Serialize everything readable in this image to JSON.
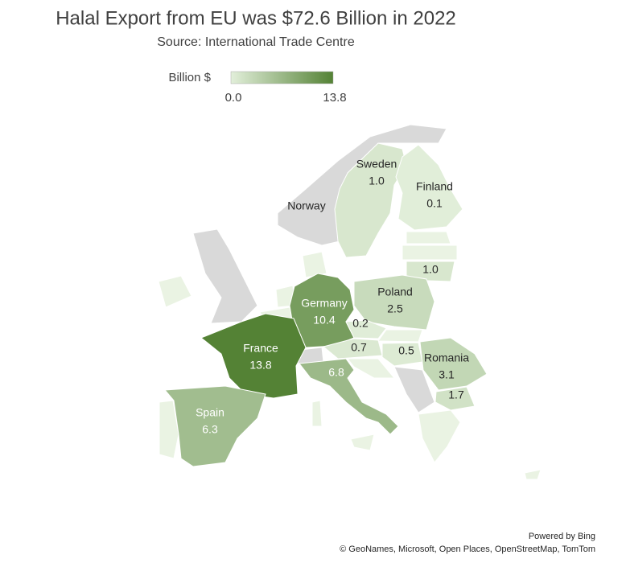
{
  "title": "Halal Export from EU was $72.6 Billion in 2022",
  "subtitle": "Source: International Trade Centre",
  "map": {
    "type": "choropleth",
    "names": [
      "Sweden",
      "Finland",
      null,
      "Poland",
      "Germany",
      null,
      "France",
      null,
      null,
      "Romania",
      null,
      null,
      "Spain"
    ],
    "values": [
      1.0,
      0.1,
      1.0,
      2.5,
      10.4,
      0.2,
      13.8,
      0.7,
      0.5,
      3.1,
      6.8,
      1.7,
      6.3
    ],
    "value_labels": [
      "1.0",
      "0.1",
      "1.0",
      "2.5",
      "10.4",
      "0.2",
      "13.8",
      "0.7",
      "0.5",
      "3.1",
      "6.8",
      "1.7",
      "6.3"
    ],
    "color_range": [
      "#e2efda",
      "#548235"
    ],
    "other_labels": [
      "Norway"
    ]
  },
  "legend": {
    "title": "Billion $",
    "min": {
      "value": 0,
      "label": "0.0"
    },
    "max": 13.8
  },
  "footer": {
    "powered": "Powered by Bing",
    "credits": "© GeoNames, Microsoft, Open Places, OpenStreetMap, TomTom"
  }
}
